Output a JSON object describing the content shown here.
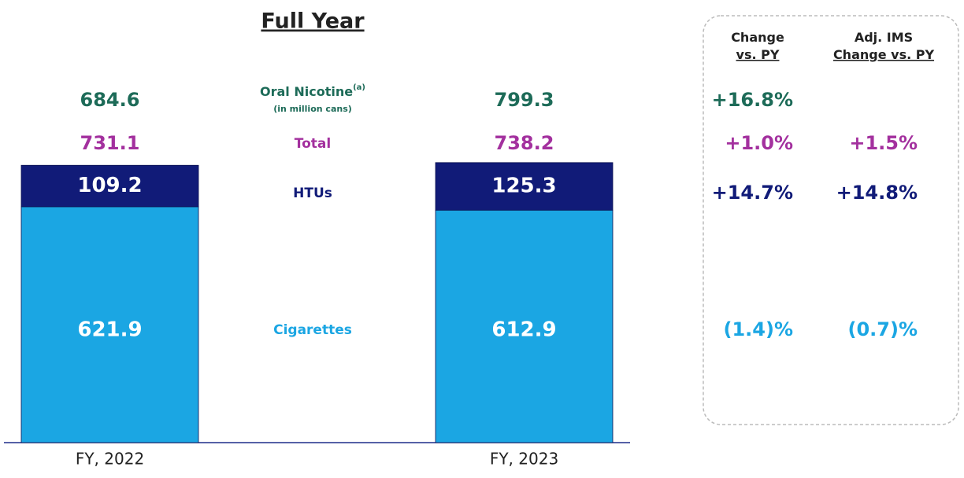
{
  "chart_data": {
    "type": "bar",
    "stacked": true,
    "title": "Full Year",
    "categories": [
      "FY, 2022",
      "FY, 2023"
    ],
    "series": [
      {
        "name": "Cigarettes",
        "color": "#1ba6e3",
        "values": [
          621.9,
          612.9
        ]
      },
      {
        "name": "HTUs",
        "color": "#111b78",
        "values": [
          109.2,
          125.3
        ]
      }
    ],
    "totals": {
      "name": "Total",
      "color": "#a3309e",
      "values": [
        731.1,
        738.2
      ]
    },
    "oral_nicotine": {
      "name": "Oral Nicotine",
      "note": "(a)",
      "unit": "(in million cans)",
      "color": "#1d6b58",
      "values": [
        684.6,
        799.3
      ]
    },
    "ylim": [
      0,
      800
    ],
    "change_table": {
      "headers": [
        "Change\nvs. PY",
        "Adj. IMS\nChange vs. PY"
      ],
      "rows": [
        {
          "values": [
            16.8,
            null
          ],
          "value_labels": [
            "+16.8%",
            null
          ]
        },
        {
          "values": [
            1.0,
            1.5
          ],
          "value_labels": [
            "+1.0%",
            "+1.5%"
          ]
        },
        {
          "values": [
            14.7,
            14.8
          ],
          "value_labels": [
            "+14.7%",
            "+14.8%"
          ]
        },
        {
          "values": [
            -1.4,
            -0.7
          ],
          "value_labels": [
            "(1.4)%",
            "(0.7)%"
          ]
        }
      ]
    }
  }
}
